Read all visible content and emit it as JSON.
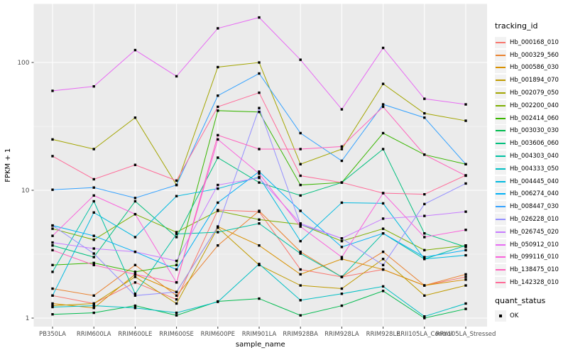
{
  "figure": {
    "background": "#FFFFFF",
    "panel_background": "#EBEBEB",
    "gridline_color": "#FFFFFF",
    "axis_text_color": "#4D4D4D",
    "axis_title_color": "#000000",
    "point_color": "#000000"
  },
  "axes": {
    "x": {
      "title": "sample_name"
    },
    "y": {
      "title": "FPKM + 1",
      "scale": "log10",
      "tick_labels": [
        "1",
        "10",
        "100"
      ],
      "tick_values": [
        1,
        10,
        100
      ]
    }
  },
  "legend": {
    "tracking": {
      "title": "tracking_id"
    },
    "quant": {
      "title": "quant_status",
      "items": [
        {
          "label": "OK",
          "marker_color": "#000000"
        }
      ]
    }
  },
  "chart_data": {
    "type": "line",
    "title": "",
    "xlabel": "sample_name",
    "ylabel": "FPKM + 1",
    "y_scale": "log10",
    "ylim": [
      0.86,
      290
    ],
    "y_major_ticks": [
      1,
      10,
      100
    ],
    "y_minor_ticks": [
      3.1623,
      31.623
    ],
    "grid": true,
    "legend_position": "right",
    "marker": "black-square",
    "categories": [
      "PB350LA",
      "RRIM600LA",
      "RRIM600LE",
      "RRIM600SE",
      "RRIM600PE",
      "RRIM901LA",
      "RRIM928BA",
      "RRIM928LA",
      "RRIM928LE",
      "RRII105LA_Control",
      "RRII105LA_Stressed"
    ],
    "series": [
      {
        "name": "Hb_000168_010",
        "color": "#F8766D",
        "values": [
          1.5,
          1.3,
          1.9,
          1.4,
          7.0,
          6.8,
          2.4,
          2.1,
          2.4,
          1.8,
          2.1
        ]
      },
      {
        "name": "Hb_000329_560",
        "color": "#EA8331",
        "values": [
          1.7,
          1.5,
          2.6,
          1.5,
          3.7,
          6.9,
          3.3,
          2.1,
          3.3,
          1.8,
          2.2
        ]
      },
      {
        "name": "Hb_000586_030",
        "color": "#D89000",
        "values": [
          1.3,
          1.2,
          2.2,
          1.6,
          5.2,
          3.7,
          2.2,
          2.9,
          2.4,
          1.8,
          2.0
        ]
      },
      {
        "name": "Hb_001894_070",
        "color": "#C09B00",
        "values": [
          1.25,
          1.3,
          2.1,
          1.3,
          5.1,
          2.6,
          1.8,
          1.7,
          2.9,
          1.5,
          1.8
        ]
      },
      {
        "name": "Hb_002079_050",
        "color": "#A3A500",
        "values": [
          25,
          21,
          37,
          11,
          92,
          100,
          16,
          21,
          68,
          40,
          35
        ]
      },
      {
        "name": "Hb_002200_040",
        "color": "#7CAE00",
        "values": [
          5.0,
          4.1,
          6.5,
          4.7,
          6.9,
          5.9,
          5.4,
          4.0,
          5.0,
          3.4,
          3.7
        ]
      },
      {
        "name": "Hb_002414_060",
        "color": "#39B600",
        "values": [
          2.6,
          2.7,
          2.3,
          2.6,
          42,
          41,
          11,
          11.5,
          28,
          19,
          16
        ]
      },
      {
        "name": "Hb_003030_030",
        "color": "#00BB4E",
        "values": [
          1.07,
          1.1,
          1.25,
          1.05,
          1.35,
          1.42,
          1.05,
          1.25,
          1.63,
          1.0,
          1.18
        ]
      },
      {
        "name": "Hb_003606_060",
        "color": "#00BF7D",
        "values": [
          3.7,
          3.0,
          8.2,
          4.3,
          18,
          11.5,
          9.1,
          11.5,
          21,
          4.6,
          3.6
        ]
      },
      {
        "name": "Hb_004303_040",
        "color": "#00C1A3",
        "values": [
          2.3,
          8.2,
          1.55,
          4.55,
          4.7,
          5.5,
          3.2,
          2.1,
          4.6,
          2.9,
          3.7
        ]
      },
      {
        "name": "Hb_004333_050",
        "color": "#00BFC4",
        "values": [
          1.22,
          1.25,
          1.2,
          1.1,
          1.34,
          2.65,
          1.38,
          1.55,
          1.77,
          1.03,
          1.3
        ]
      },
      {
        "name": "Hb_004445_040",
        "color": "#00BAE0",
        "values": [
          1.5,
          6.7,
          4.3,
          9.0,
          10.3,
          12.7,
          4.0,
          8.0,
          7.9,
          2.9,
          3.1
        ]
      },
      {
        "name": "Hb_006274_040",
        "color": "#00B0F6",
        "values": [
          5.3,
          4.4,
          3.3,
          2.4,
          8.0,
          14,
          6.9,
          3.6,
          4.6,
          3.0,
          3.4
        ]
      },
      {
        "name": "Hb_008447_030",
        "color": "#35A2FF",
        "values": [
          10.1,
          10.5,
          8.7,
          11,
          55,
          82,
          28,
          17,
          47,
          37,
          16
        ]
      },
      {
        "name": "Hb_026228_010",
        "color": "#9590FF",
        "values": [
          5.3,
          3.2,
          1.5,
          1.6,
          5.2,
          44,
          5.4,
          4.2,
          2.6,
          7.8,
          11.3
        ]
      },
      {
        "name": "Hb_026745_020",
        "color": "#C77CFF",
        "values": [
          3.9,
          3.5,
          3.3,
          2.8,
          11,
          12.5,
          5.5,
          4.2,
          6.0,
          6.3,
          6.8
        ]
      },
      {
        "name": "Hb_050912_010",
        "color": "#E76BF3",
        "values": [
          60,
          65,
          125,
          78,
          185,
          225,
          105,
          43,
          130,
          52,
          47
        ]
      },
      {
        "name": "Hb_099116_010",
        "color": "#FA62DB",
        "values": [
          4.4,
          9.1,
          6.5,
          1.9,
          25,
          13.5,
          5.2,
          3.0,
          9.5,
          4.3,
          4.9
        ]
      },
      {
        "name": "Hb_138475_010",
        "color": "#FF62BC",
        "values": [
          3.4,
          2.6,
          2.2,
          1.9,
          27,
          21,
          21,
          22,
          45,
          19,
          13
        ]
      },
      {
        "name": "Hb_142328_010",
        "color": "#FF6A98",
        "values": [
          18.5,
          12.2,
          15.8,
          11.9,
          45,
          58,
          13,
          11.5,
          9.5,
          9.3,
          13.1
        ]
      }
    ]
  }
}
